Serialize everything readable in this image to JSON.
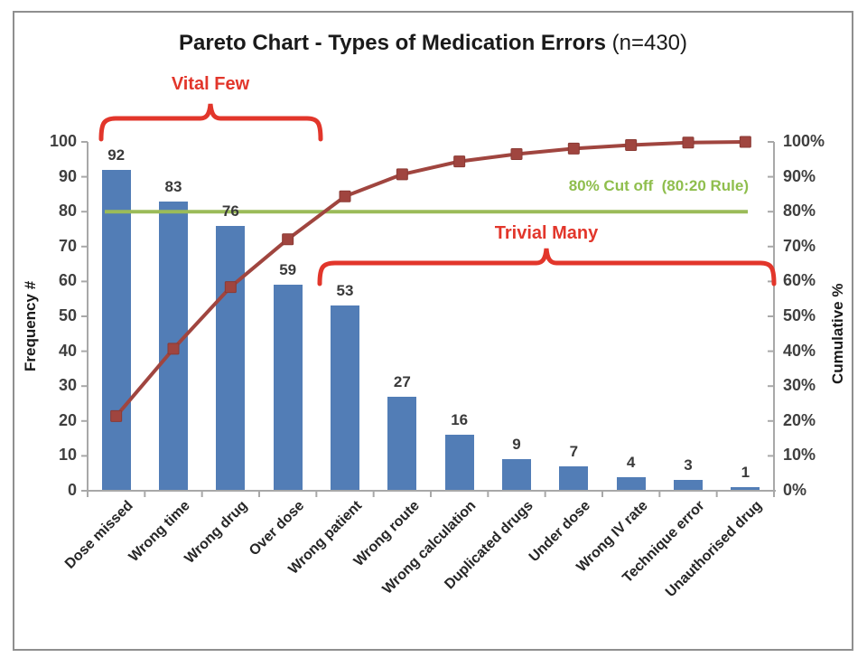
{
  "title": {
    "main": "Pareto Chart - Types of Medication Errors",
    "suffix": " (n=430)"
  },
  "colors": {
    "bar": "#527DB6",
    "line": "#A0453F",
    "marker_edge": "#8A3A34",
    "cutoff_line": "#9BBB59",
    "cutoff_text": "#8FBE4D",
    "accent_red": "#E2362B",
    "axis": "#A8A8A8"
  },
  "chart_data": {
    "type": "pareto (bar + cumulative line)",
    "title": "Pareto Chart - Types of Medication Errors (n=430)",
    "n_total": 430,
    "categories": [
      "Dose missed",
      "Wrong time",
      "Wrong drug",
      "Over dose",
      "Wrong patient",
      "Wrong route",
      "Wrong calculation",
      "Duplicated drugs",
      "Under dose",
      "Wrong IV rate",
      "Technique error",
      "Unauthorised drug"
    ],
    "series": [
      {
        "name": "Frequency #",
        "type": "bar",
        "values": [
          92,
          83,
          76,
          59,
          53,
          27,
          16,
          9,
          7,
          4,
          3,
          1
        ]
      },
      {
        "name": "Cumulative %",
        "type": "line",
        "values": [
          21.4,
          40.7,
          58.4,
          72.1,
          84.4,
          90.7,
          94.4,
          96.5,
          98.1,
          99.1,
          99.8,
          100
        ]
      }
    ],
    "left_axis": {
      "label": "Frequency #",
      "min": 0,
      "max": 100,
      "step": 10
    },
    "right_axis": {
      "label": "Cumulative %",
      "min": 0,
      "max": 100,
      "step": 10,
      "format": "percent"
    },
    "cutoff": {
      "value": 80,
      "label": "80% Cut off  (80:20 Rule)"
    },
    "annotations": [
      {
        "text": "Vital Few",
        "span": "categories 1-4"
      },
      {
        "text": "Trivial Many",
        "span": "categories 5-12"
      }
    ],
    "grid": "off",
    "legend": "none",
    "bar_value_labels": "shown above each bar"
  }
}
